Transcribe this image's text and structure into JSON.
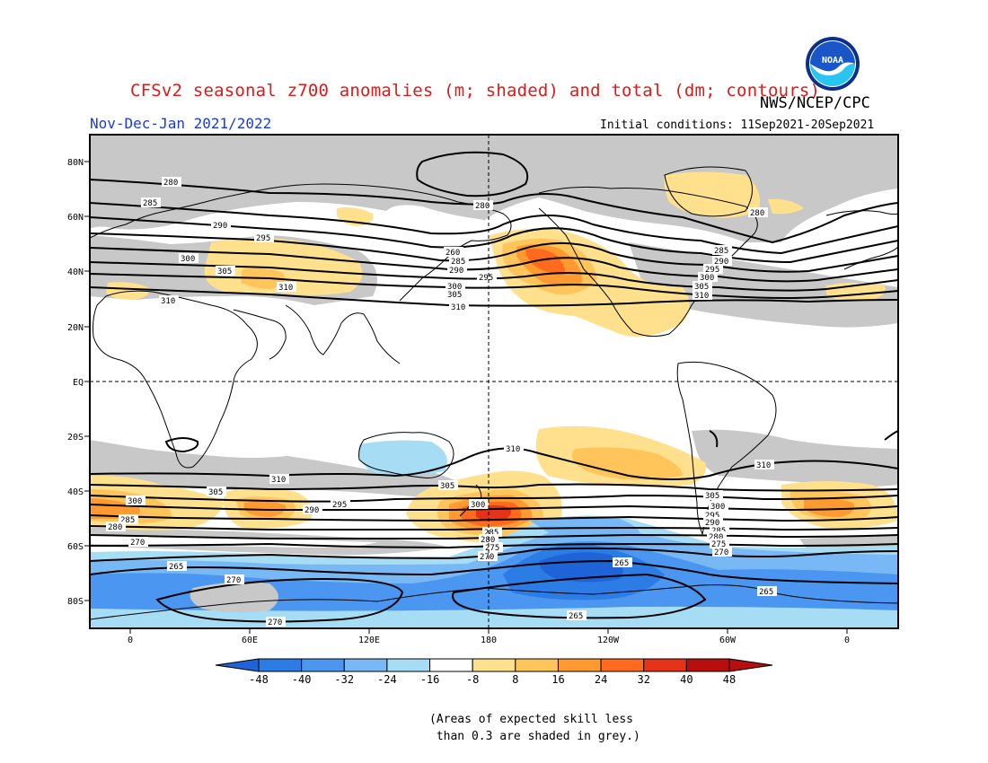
{
  "header": {
    "title": "CFSv2 seasonal z700 anomalies (m; shaded) and total (dm; contours)",
    "org": "NWS/NCEP/CPC",
    "period": "Nov-Dec-Jan 2021/2022",
    "initial_conditions": "Initial conditions: 11Sep2021-20Sep2021",
    "logo_text": "NOAA"
  },
  "map": {
    "lat_labels": [
      "80N",
      "60N",
      "40N",
      "20N",
      "EQ",
      "20S",
      "40S",
      "60S",
      "80S"
    ],
    "lon_labels": [
      "0",
      "60E",
      "120E",
      "180",
      "120W",
      "60W",
      "0"
    ],
    "grey_meaning": "skill < 0.3"
  },
  "colorbar": {
    "ticks": [
      "-48",
      "-40",
      "-32",
      "-24",
      "-16",
      "-8",
      "8",
      "16",
      "24",
      "32",
      "40",
      "48"
    ],
    "colors": [
      "#1e64d8",
      "#2c7ce6",
      "#4a96f0",
      "#78b8f4",
      "#a6dcf4",
      "#ffffff",
      "#ffe08c",
      "#ffc45a",
      "#ff9a30",
      "#ff6a1e",
      "#e63218",
      "#b80e0e"
    ]
  },
  "contour_labels": [
    "280",
    "285",
    "290",
    "295",
    "300",
    "305",
    "310",
    "260",
    "265",
    "270",
    "275"
  ],
  "footnote": "(Areas of expected skill less\n than 0.3 are shaded in grey.)",
  "chart_data": {
    "type": "heatmap",
    "title": "CFSv2 seasonal z700 anomalies (m; shaded) and total (dm; contours)",
    "shaded_variable": "z700 anomaly (m)",
    "contour_variable": "z700 total (dm)",
    "color_levels": [
      -48,
      -40,
      -32,
      -24,
      -16,
      -8,
      8,
      16,
      24,
      32,
      40,
      48
    ],
    "contour_levels_dm": [
      265,
      270,
      275,
      280,
      285,
      290,
      295,
      300,
      305,
      310
    ],
    "features": [
      {
        "label": "North Pacific positive anomaly",
        "lon": -150,
        "lat": 40,
        "anomaly_m": 32
      },
      {
        "label": "Southwest Pacific positive anomaly",
        "lon": 175,
        "lat": -48,
        "anomaly_m": 40
      },
      {
        "label": "South Atlantic positive anomaly",
        "lon": -10,
        "lat": -45,
        "anomaly_m": 32
      },
      {
        "label": "Southern Indian Ocean positive anomaly",
        "lon": 55,
        "lat": -45,
        "anomaly_m": 32
      },
      {
        "label": "South Pacific/Amundsen negative anomaly",
        "lon": -125,
        "lat": -65,
        "anomaly_m": -40
      },
      {
        "label": "Australia weak negative anomaly",
        "lon": 140,
        "lat": -25,
        "anomaly_m": -16
      }
    ]
  }
}
